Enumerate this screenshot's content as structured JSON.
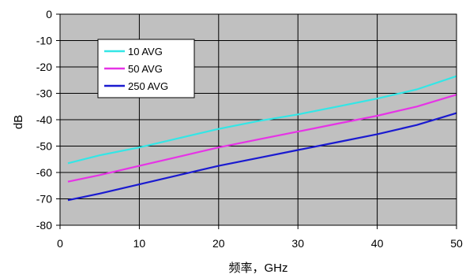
{
  "chart_data": {
    "type": "line",
    "title": "",
    "xlabel": "频率，GHz",
    "ylabel": "dB",
    "xlim": [
      0,
      50
    ],
    "ylim": [
      -80,
      0
    ],
    "x_ticks": [
      0,
      10,
      20,
      30,
      40,
      50
    ],
    "y_ticks": [
      0,
      -10,
      -20,
      -30,
      -40,
      -50,
      -60,
      -70,
      -80
    ],
    "grid": true,
    "plot_background": "#c0c0c0",
    "legend_position": "upper-left",
    "series": [
      {
        "name": "10 AVG",
        "color": "#33e6e6",
        "x": [
          1,
          5,
          10,
          15,
          20,
          25,
          30,
          35,
          40,
          45,
          50
        ],
        "y": [
          -56.5,
          -53.5,
          -50.5,
          -47,
          -43.5,
          -40.5,
          -38,
          -35,
          -32,
          -28.5,
          -23.5
        ]
      },
      {
        "name": "50 AVG",
        "color": "#e633e6",
        "x": [
          1,
          5,
          10,
          15,
          20,
          25,
          30,
          35,
          40,
          45,
          50
        ],
        "y": [
          -63.5,
          -61,
          -57.5,
          -54,
          -50.5,
          -47.5,
          -44.5,
          -41.5,
          -38.5,
          -35,
          -30.5
        ]
      },
      {
        "name": "250 AVG",
        "color": "#1a1ad0",
        "x": [
          1,
          5,
          10,
          15,
          20,
          25,
          30,
          35,
          40,
          45,
          50
        ],
        "y": [
          -70.5,
          -68,
          -64.5,
          -61,
          -57.5,
          -54.5,
          -51.5,
          -48.5,
          -45.5,
          -42,
          -37.5
        ]
      }
    ]
  }
}
